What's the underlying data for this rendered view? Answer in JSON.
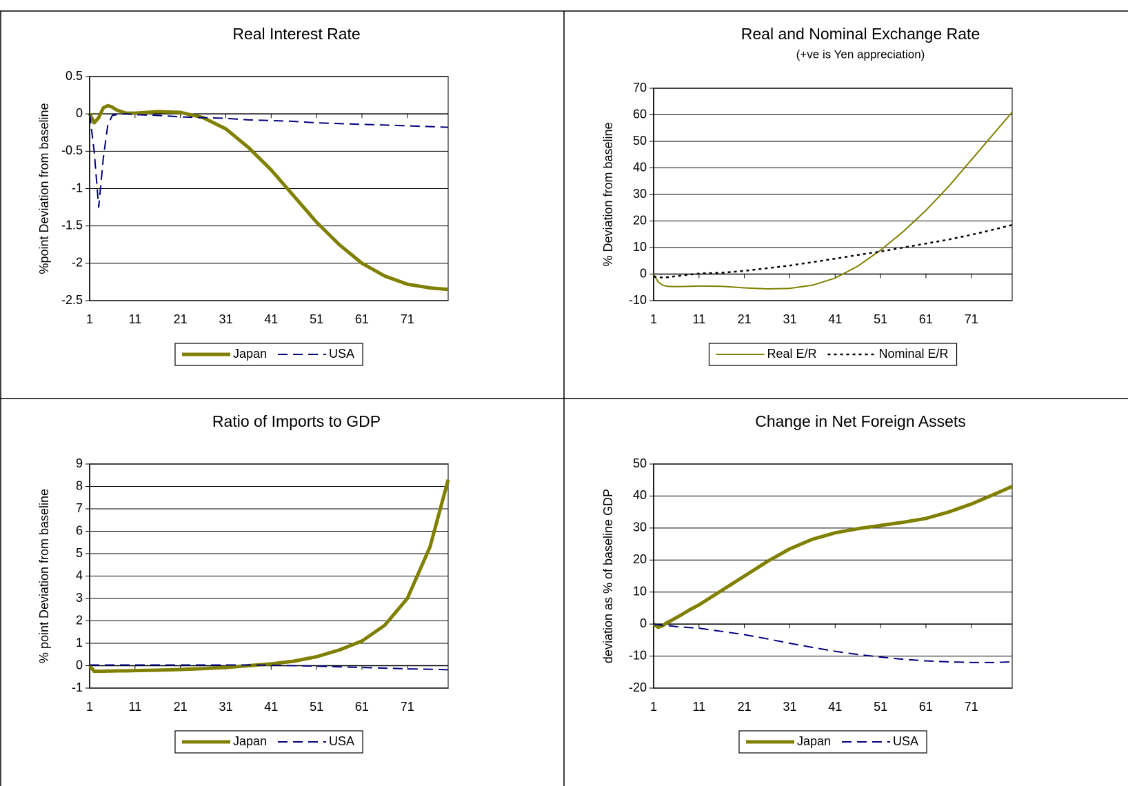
{
  "chart_data": [
    {
      "type": "line",
      "title": "Real Interest Rate",
      "ylabel": "%point  Deviation from baseline",
      "x": [
        1,
        2,
        3,
        4,
        5,
        6,
        7,
        9,
        11,
        16,
        21,
        26,
        31,
        36,
        41,
        46,
        51,
        56,
        61,
        66,
        71,
        76,
        80
      ],
      "xlim": [
        1,
        80
      ],
      "xticks": [
        1,
        11,
        21,
        31,
        41,
        51,
        61,
        71
      ],
      "ylim": [
        -2.5,
        0.5
      ],
      "yticks": [
        -2.5,
        -2,
        -1.5,
        -1,
        -0.5,
        0,
        0.5
      ],
      "grid": true,
      "legend": "bottom",
      "series": [
        {
          "name": "Japan",
          "color": "#808000",
          "style": "solid",
          "line_width": 5,
          "values": [
            0,
            -0.12,
            -0.05,
            0.08,
            0.11,
            0.09,
            0.05,
            0.01,
            0.01,
            0.03,
            0.02,
            -0.05,
            -0.2,
            -0.45,
            -0.75,
            -1.1,
            -1.45,
            -1.75,
            -2.0,
            -2.17,
            -2.28,
            -2.33,
            -2.35
          ]
        },
        {
          "name": "USA",
          "color": "#000080",
          "style": "dashed",
          "line_width": 2,
          "values": [
            0,
            -0.5,
            -1.25,
            -0.6,
            -0.15,
            -0.02,
            -0.01,
            0,
            -0.01,
            -0.02,
            -0.04,
            -0.05,
            -0.06,
            -0.08,
            -0.09,
            -0.1,
            -0.12,
            -0.13,
            -0.14,
            -0.15,
            -0.16,
            -0.17,
            -0.18
          ]
        }
      ]
    },
    {
      "type": "line",
      "title": "Real and Nominal Exchange Rate",
      "subtitle": "(+ve is Yen appreciation)",
      "ylabel": "%  Deviation from baseline",
      "x": [
        1,
        2,
        3,
        4,
        5,
        6,
        7,
        9,
        11,
        16,
        21,
        26,
        31,
        36,
        41,
        46,
        51,
        56,
        61,
        66,
        71,
        76,
        80
      ],
      "xlim": [
        1,
        80
      ],
      "xticks": [
        1,
        11,
        21,
        31,
        41,
        51,
        61,
        71
      ],
      "ylim": [
        -10,
        70
      ],
      "yticks": [
        -10,
        0,
        10,
        20,
        30,
        40,
        50,
        60,
        70
      ],
      "grid": true,
      "legend": "bottom",
      "series": [
        {
          "name": "Real E/R",
          "color": "#808000",
          "style": "solid",
          "line_width": 2,
          "values": [
            0,
            -3,
            -4.2,
            -4.6,
            -4.7,
            -4.7,
            -4.7,
            -4.6,
            -4.5,
            -4.6,
            -5.2,
            -5.6,
            -5.4,
            -4.2,
            -1.5,
            3,
            9,
            16,
            24,
            33,
            43,
            53,
            61
          ]
        },
        {
          "name": "Nominal E/R",
          "color": "#000000",
          "style": "dotted",
          "line_width": 2.5,
          "values": [
            -1,
            -1.2,
            -1.3,
            -1.2,
            -1,
            -0.8,
            -0.6,
            -0.2,
            0.2,
            0.5,
            1.2,
            2.2,
            3.2,
            4.5,
            5.8,
            7.2,
            8.5,
            10,
            11.5,
            13,
            14.8,
            16.8,
            18.5
          ]
        }
      ]
    },
    {
      "type": "line",
      "title": "Ratio of Imports to GDP",
      "ylabel": "% point  Deviation from baseline",
      "x": [
        1,
        2,
        3,
        4,
        5,
        6,
        7,
        9,
        11,
        16,
        21,
        26,
        31,
        36,
        41,
        46,
        51,
        56,
        61,
        66,
        71,
        76,
        80
      ],
      "xlim": [
        1,
        80
      ],
      "xticks": [
        1,
        11,
        21,
        31,
        41,
        51,
        61,
        71
      ],
      "ylim": [
        -1,
        9
      ],
      "yticks": [
        -1,
        0,
        1,
        2,
        3,
        4,
        5,
        6,
        7,
        8,
        9
      ],
      "grid": true,
      "legend": "bottom",
      "series": [
        {
          "name": "Japan",
          "color": "#808000",
          "style": "solid",
          "line_width": 5,
          "values": [
            0,
            -0.25,
            -0.25,
            -0.25,
            -0.24,
            -0.24,
            -0.23,
            -0.23,
            -0.22,
            -0.2,
            -0.17,
            -0.13,
            -0.08,
            0,
            0.08,
            0.2,
            0.4,
            0.7,
            1.1,
            1.8,
            3.0,
            5.3,
            8.3
          ]
        },
        {
          "name": "USA",
          "color": "#000080",
          "style": "dashed",
          "line_width": 2,
          "values": [
            0.03,
            0.03,
            0.03,
            0.03,
            0.03,
            0.03,
            0.03,
            0.03,
            0.03,
            0.03,
            0.03,
            0.03,
            0.03,
            0.03,
            0.02,
            0,
            -0.02,
            -0.05,
            -0.08,
            -0.11,
            -0.14,
            -0.16,
            -0.18
          ]
        }
      ]
    },
    {
      "type": "line",
      "title": "Change in Net Foreign Assets",
      "ylabel": "deviation as % of baseline GDP",
      "x": [
        1,
        2,
        3,
        4,
        5,
        6,
        7,
        9,
        11,
        16,
        21,
        26,
        31,
        36,
        41,
        46,
        51,
        56,
        61,
        66,
        71,
        76,
        80
      ],
      "xlim": [
        1,
        80
      ],
      "xticks": [
        1,
        11,
        21,
        31,
        41,
        51,
        61,
        71
      ],
      "ylim": [
        -20,
        50
      ],
      "yticks": [
        -20,
        -10,
        0,
        10,
        20,
        30,
        40,
        50
      ],
      "grid": true,
      "legend": "bottom",
      "series": [
        {
          "name": "Japan",
          "color": "#808000",
          "style": "solid",
          "line_width": 5,
          "values": [
            0,
            -1,
            -0.5,
            0.5,
            1.2,
            2,
            2.8,
            4.5,
            6,
            10.5,
            15,
            19.5,
            23.5,
            26.5,
            28.5,
            29.8,
            30.8,
            31.8,
            33,
            35,
            37.5,
            40.5,
            43
          ]
        },
        {
          "name": "USA",
          "color": "#000080",
          "style": "dashed",
          "line_width": 2,
          "values": [
            0,
            -0.2,
            -0.4,
            -0.5,
            -0.6,
            -0.8,
            -0.9,
            -1.1,
            -1.3,
            -2.3,
            -3.3,
            -4.6,
            -6,
            -7.3,
            -8.5,
            -9.5,
            -10.3,
            -11,
            -11.5,
            -11.8,
            -12,
            -12,
            -11.8
          ]
        }
      ]
    }
  ]
}
